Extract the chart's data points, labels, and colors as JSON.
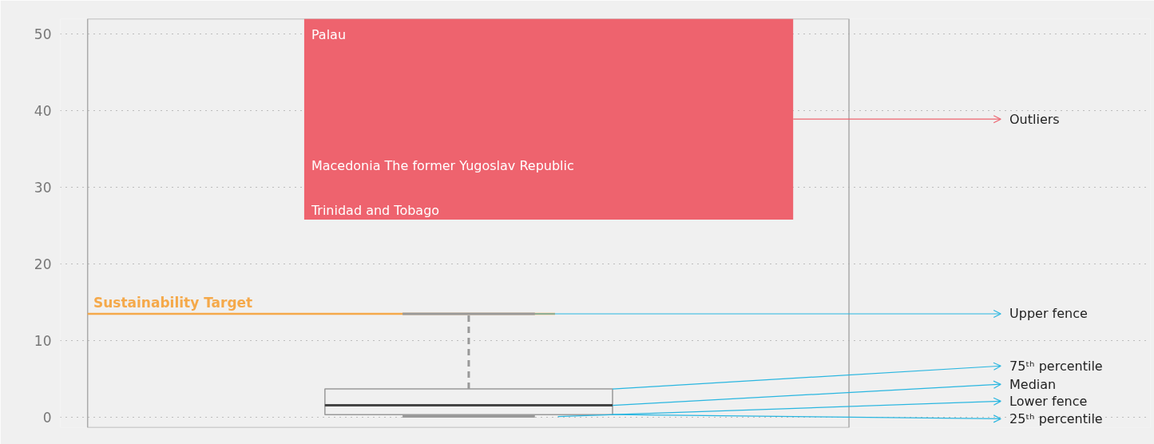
{
  "chart_data": {
    "type": "box",
    "categories": [
      null
    ],
    "boxes": [
      {
        "low": 0.1,
        "q1": 0.35,
        "median": 1.56,
        "q3": 3.7,
        "high": 13.5
      }
    ],
    "color": "#999999",
    "ylim": [
      -1.35,
      52
    ],
    "yticks": [
      0,
      10,
      20,
      30,
      40,
      50
    ],
    "grid": "y",
    "ref_lines": [
      {
        "axis": "y",
        "value": 13.5,
        "label": "Sustainability Target",
        "color": "#f5a94a"
      }
    ],
    "bands": [
      {
        "axis": "y",
        "from": 25.8,
        "to": 52,
        "label": "Outliers",
        "color": "#ee636e"
      }
    ],
    "annotations": [
      "Palau",
      "Macedonia The former Yugoslav Republic",
      "Trinidad and Tobago",
      "Upper fence",
      "75ᵗʰ percentile",
      "Median",
      "Lower fence",
      "25ᵗʰ percentile"
    ]
  }
}
